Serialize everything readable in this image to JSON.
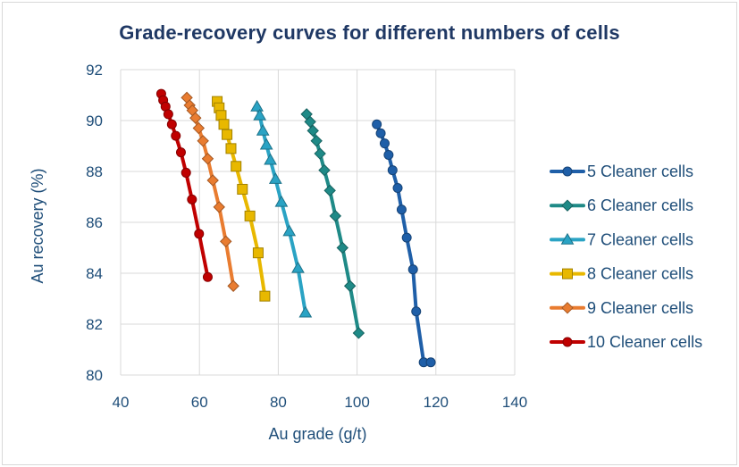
{
  "chart_data": {
    "type": "line",
    "title": "Grade-recovery curves for different numbers of cells",
    "xlabel": "Au grade (g/t)",
    "ylabel": "Au recovery (%)",
    "xlim": [
      40,
      140
    ],
    "ylim": [
      80,
      92
    ],
    "xticks": [
      "40",
      "60",
      "80",
      "100",
      "120",
      "140"
    ],
    "yticks": [
      "80",
      "82",
      "84",
      "86",
      "88",
      "90",
      "92"
    ],
    "grid": true,
    "legend_position": "right",
    "series": [
      {
        "name": "5 Cleaner cells",
        "color": "#1f5fa8",
        "marker": "circle",
        "x": [
          105.0,
          106.0,
          107.0,
          108.0,
          109.0,
          110.3,
          111.3,
          112.6,
          114.2,
          115.0,
          116.9,
          118.7
        ],
        "y": [
          89.85,
          89.5,
          89.1,
          88.65,
          88.05,
          87.35,
          86.5,
          85.4,
          84.15,
          82.5,
          80.5,
          80.5
        ]
      },
      {
        "name": "6 Cleaner cells",
        "color": "#1f8a87",
        "marker": "diamond",
        "x": [
          87.2,
          88.1,
          88.8,
          89.7,
          90.6,
          91.7,
          93.1,
          94.5,
          96.3,
          98.2,
          100.4
        ],
        "y": [
          90.25,
          89.95,
          89.6,
          89.2,
          88.7,
          88.05,
          87.25,
          86.25,
          85.0,
          83.5,
          81.65
        ]
      },
      {
        "name": "7 Cleaner cells",
        "color": "#2aa3c4",
        "marker": "triangle",
        "x": [
          74.6,
          75.3,
          76.1,
          77.0,
          78.0,
          79.3,
          80.8,
          82.8,
          85.0,
          86.9
        ],
        "y": [
          90.55,
          90.2,
          89.6,
          89.05,
          88.45,
          87.7,
          86.8,
          85.65,
          84.2,
          82.45
        ]
      },
      {
        "name": "8 Cleaner cells",
        "color": "#e8b800",
        "marker": "square",
        "x": [
          64.5,
          65.0,
          65.5,
          66.2,
          67.0,
          68.0,
          69.3,
          70.9,
          72.8,
          74.9,
          76.6
        ],
        "y": [
          90.75,
          90.5,
          90.2,
          89.85,
          89.45,
          88.9,
          88.2,
          87.3,
          86.25,
          84.8,
          83.1
        ]
      },
      {
        "name": "9 Cleaner cells",
        "color": "#e97c30",
        "marker": "diamond",
        "x": [
          56.8,
          57.5,
          58.2,
          59.0,
          59.8,
          60.9,
          62.1,
          63.4,
          65.0,
          66.7,
          68.6
        ],
        "y": [
          90.9,
          90.6,
          90.4,
          90.1,
          89.7,
          89.2,
          88.5,
          87.65,
          86.6,
          85.25,
          83.5
        ]
      },
      {
        "name": "10 Cleaner cells",
        "color": "#c00000",
        "marker": "circle",
        "x": [
          50.3,
          50.8,
          51.4,
          52.1,
          53.0,
          54.0,
          55.3,
          56.6,
          58.1,
          59.9,
          62.1
        ],
        "y": [
          91.05,
          90.8,
          90.55,
          90.25,
          89.85,
          89.4,
          88.75,
          87.95,
          86.9,
          85.55,
          83.85
        ]
      }
    ]
  }
}
